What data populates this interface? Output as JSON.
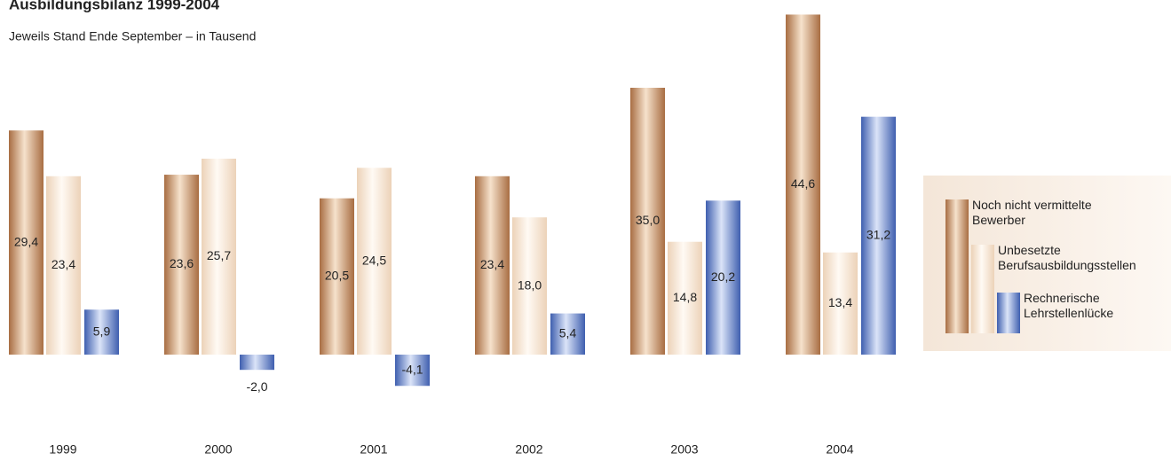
{
  "chart_data": {
    "type": "bar",
    "title": "Ausbildungsbilanz 1999-2004",
    "subtitle": "Jeweils Stand Ende September – in Tausend",
    "categories": [
      "1999",
      "2000",
      "2001",
      "2002",
      "2003",
      "2004"
    ],
    "series": [
      {
        "name": "Noch nicht vermittelte Bewerber",
        "color": "#b98458",
        "values": [
          29.4,
          23.6,
          20.5,
          23.4,
          35.0,
          44.6
        ],
        "value_labels": [
          "29,4",
          "23,6",
          "20,5",
          "23,4",
          "35,0",
          "44,6"
        ]
      },
      {
        "name": "Unbesetzte Berufsausbildungsstellen",
        "color": "#f1dcc6",
        "values": [
          23.4,
          25.7,
          24.5,
          18.0,
          14.8,
          13.4
        ],
        "value_labels": [
          "23,4",
          "25,7",
          "24,5",
          "18,0",
          "14,8",
          "13,4"
        ]
      },
      {
        "name": "Rechnerische Lehrstellenlücke",
        "color": "#5a78bf",
        "values": [
          5.9,
          -2.0,
          -4.1,
          5.4,
          20.2,
          31.2
        ],
        "value_labels": [
          "5,9",
          "-2,0",
          "-4,1",
          "5,4",
          "20,2",
          "31,2"
        ]
      }
    ],
    "legend": "right"
  }
}
